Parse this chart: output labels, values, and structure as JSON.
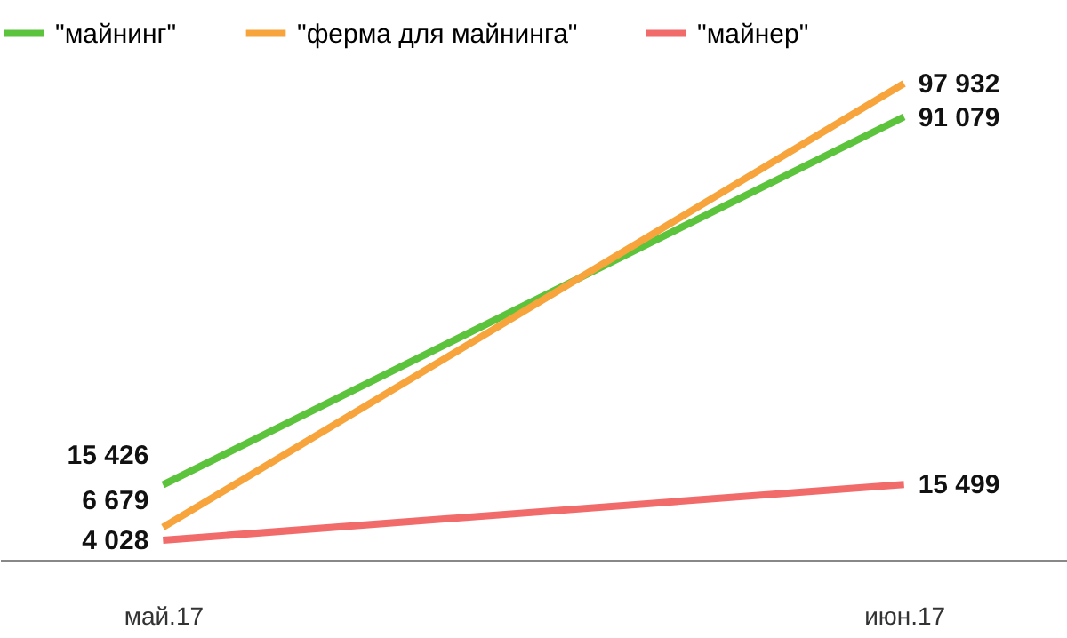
{
  "chart_data": {
    "type": "line",
    "categories": [
      "май.17",
      "июн.17"
    ],
    "series": [
      {
        "name": "\"майнинг\"",
        "color": "#5cc43c",
        "values": [
          15426,
          91079
        ]
      },
      {
        "name": "\"ферма для майнинга\"",
        "color": "#f7a43c",
        "values": [
          6679,
          97932
        ]
      },
      {
        "name": "\"майнер\"",
        "color": "#f26b6b",
        "values": [
          4028,
          15499
        ]
      }
    ],
    "data_labels": true,
    "value_labels": [
      [
        "15 426",
        "91 079"
      ],
      [
        "6 679",
        "97 932"
      ],
      [
        "4 028",
        "15 499"
      ]
    ],
    "legend": "top",
    "grid": false,
    "tick_labels": "x",
    "marker": "none",
    "line_style": "solid"
  }
}
